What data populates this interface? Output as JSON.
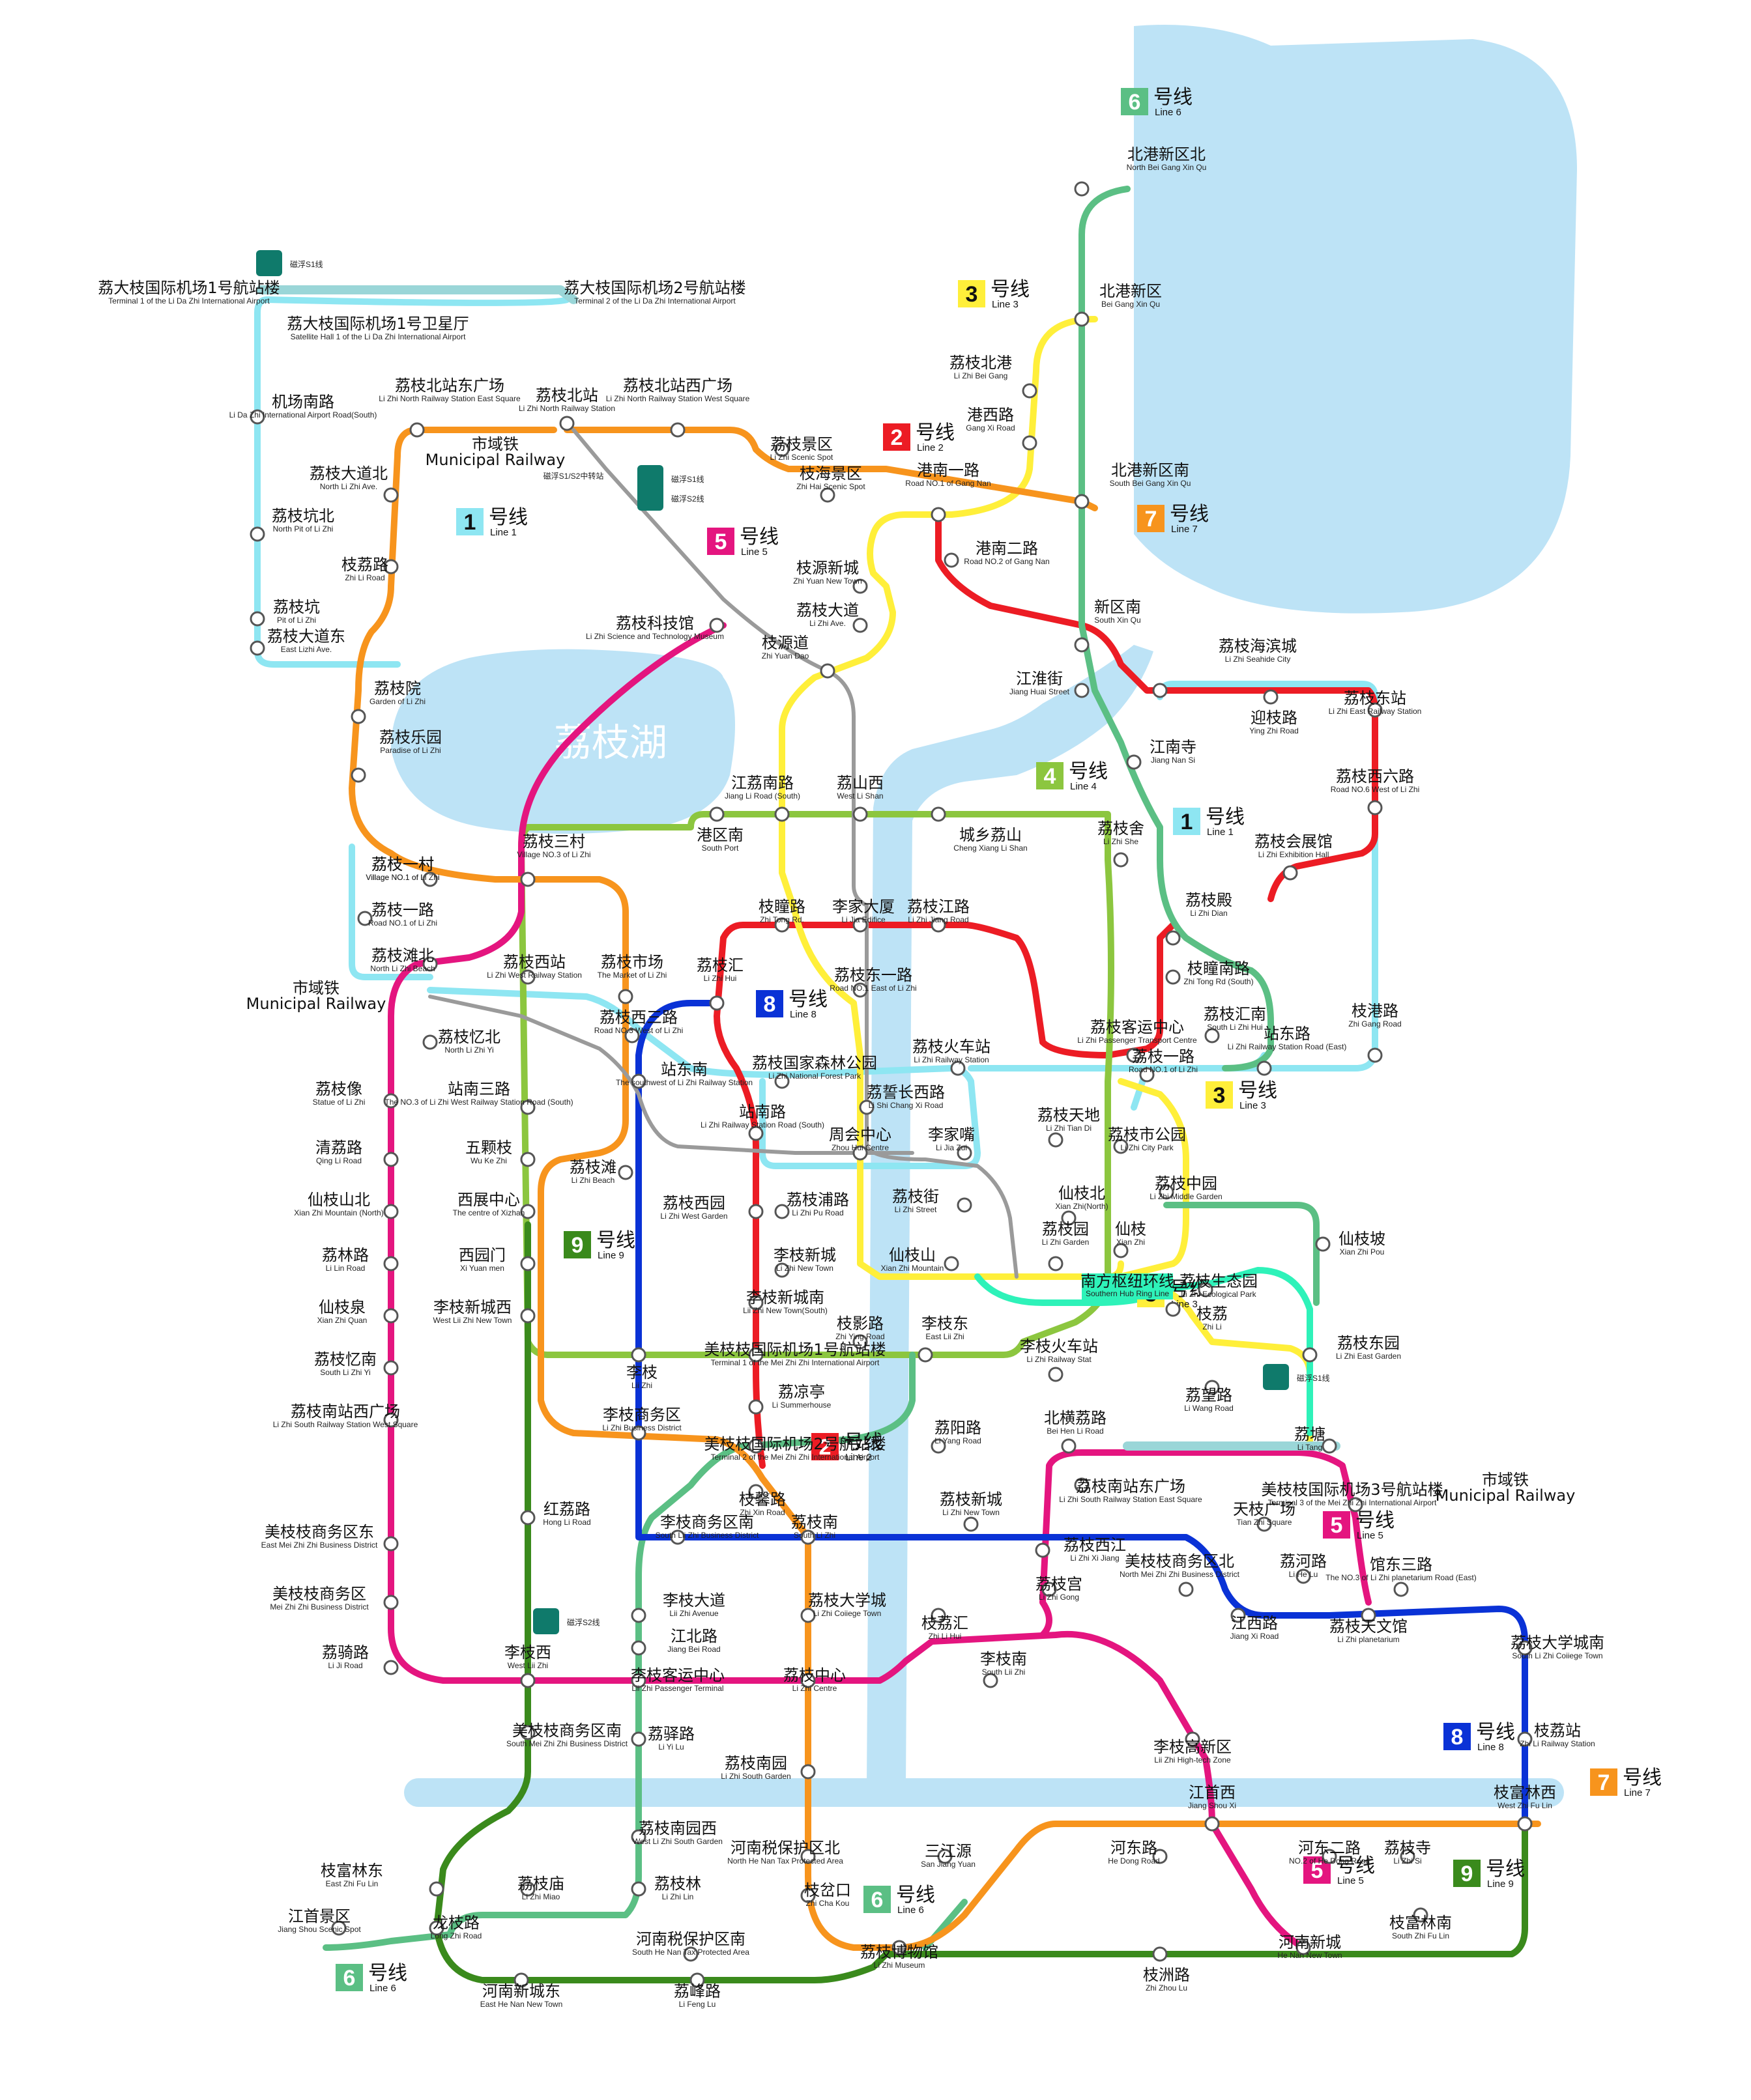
{
  "colors": {
    "water": "#bde3f6",
    "line1": "#8ee6f2",
    "line2": "#ec1c24",
    "line3": "#ffef3a",
    "line4": "#8cc63f",
    "line5": "#e4157f",
    "line6": "#5bbf84",
    "line7": "#f7941d",
    "line8": "#0a32d6",
    "line9": "#3a8a1c",
    "ring": "#2ef2b9",
    "railway": "#999999"
  },
  "map": {
    "lake_label": "荔枝湖",
    "badges": [
      {
        "num": "1",
        "cn": "号线",
        "en": "Line 1",
        "bg": "#8ee6f2",
        "fg": "#111"
      },
      {
        "num": "1",
        "cn": "号线",
        "en": "Line 1",
        "bg": "#8ee6f2",
        "fg": "#111"
      },
      {
        "num": "2",
        "cn": "号线",
        "en": "Line 2",
        "bg": "#ec1c24",
        "fg": "#fff"
      },
      {
        "num": "2",
        "cn": "号线",
        "en": "Line 2",
        "bg": "#ec1c24",
        "fg": "#fff"
      },
      {
        "num": "3",
        "cn": "号线",
        "en": "Line 3",
        "bg": "#ffef3a",
        "fg": "#111"
      },
      {
        "num": "3",
        "cn": "号线",
        "en": "Line 3",
        "bg": "#ffef3a",
        "fg": "#111"
      },
      {
        "num": "3",
        "cn": "号线",
        "en": "Line 3",
        "bg": "#ffef3a",
        "fg": "#111"
      },
      {
        "num": "4",
        "cn": "号线",
        "en": "Line 4",
        "bg": "#8cc63f",
        "fg": "#fff"
      },
      {
        "num": "5",
        "cn": "号线",
        "en": "Line 5",
        "bg": "#e4157f",
        "fg": "#fff"
      },
      {
        "num": "5",
        "cn": "号线",
        "en": "Line 5",
        "bg": "#e4157f",
        "fg": "#fff"
      },
      {
        "num": "5",
        "cn": "号线",
        "en": "Line 5",
        "bg": "#e4157f",
        "fg": "#fff"
      },
      {
        "num": "6",
        "cn": "号线",
        "en": "Line 6",
        "bg": "#5bbf84",
        "fg": "#fff"
      },
      {
        "num": "6",
        "cn": "号线",
        "en": "Line 6",
        "bg": "#5bbf84",
        "fg": "#fff"
      },
      {
        "num": "6",
        "cn": "号线",
        "en": "Line 6",
        "bg": "#5bbf84",
        "fg": "#fff"
      },
      {
        "num": "7",
        "cn": "号线",
        "en": "Line 7",
        "bg": "#f7941d",
        "fg": "#fff"
      },
      {
        "num": "7",
        "cn": "号线",
        "en": "Line 7",
        "bg": "#f7941d",
        "fg": "#fff"
      },
      {
        "num": "8",
        "cn": "号线",
        "en": "Line 8",
        "bg": "#0a32d6",
        "fg": "#fff"
      },
      {
        "num": "8",
        "cn": "号线",
        "en": "Line 8",
        "bg": "#0a32d6",
        "fg": "#fff"
      },
      {
        "num": "9",
        "cn": "号线",
        "en": "Line 9",
        "bg": "#3a8a1c",
        "fg": "#fff"
      },
      {
        "num": "9",
        "cn": "号线",
        "en": "Line 9",
        "bg": "#3a8a1c",
        "fg": "#fff"
      }
    ],
    "maglev_labels": [
      "磁浮S1线",
      "磁浮S1线",
      "磁浮S2线",
      "磁浮S2线",
      "磁浮S1线"
    ],
    "maglev_transfer_label": "磁浮S1/S2中转站",
    "railway_labels": [
      {
        "cn": "市域铁",
        "en": "Municipal Railway"
      },
      {
        "cn": "市域铁",
        "en": "Municipal Railway"
      },
      {
        "cn": "市域铁",
        "en": "Municipal Railway"
      }
    ],
    "ring_label": {
      "cn": "南方枢纽环线",
      "en": "Southern Hub Ring Line"
    },
    "stations": [
      {
        "cn": "北港新区北",
        "en": "North Bei Gang Xin Qu"
      },
      {
        "cn": "北港新区",
        "en": "Bei Gang Xin Qu"
      },
      {
        "cn": "荔枝北港",
        "en": "Li Zhi Bei Gang"
      },
      {
        "cn": "港西路",
        "en": "Gang Xi Road"
      },
      {
        "cn": "港南一路",
        "en": "Road NO.1 of Gang Nan"
      },
      {
        "cn": "北港新区南",
        "en": "South Bei Gang Xin Qu"
      },
      {
        "cn": "港南二路",
        "en": "Road NO.2 of Gang Nan"
      },
      {
        "cn": "新区南",
        "en": "South Xin Qu"
      },
      {
        "cn": "荔大枝国际机场1号航站楼",
        "en": "Terminal 1 of the Li Da Zhi International Airport"
      },
      {
        "cn": "荔大枝国际机场2号航站楼",
        "en": "Terminal 2 of the Li Da Zhi International Airport"
      },
      {
        "cn": "荔大枝国际机场1号卫星厅",
        "en": "Satellite Hall 1 of the Li Da Zhi International Airport"
      },
      {
        "cn": "荔枝北站东广场",
        "en": "Li Zhi North Railway Station East Square"
      },
      {
        "cn": "荔枝北站",
        "en": "Li Zhi North Railway Station"
      },
      {
        "cn": "荔枝北站西广场",
        "en": "Li Zhi North Railway Station West Square"
      },
      {
        "cn": "机场南路",
        "en": "Li Da Zhi International Airport Road(South)"
      },
      {
        "cn": "荔枝景区",
        "en": "Li Zhi Scenic Spot"
      },
      {
        "cn": "枝海景区",
        "en": "Zhi Hai Scenic Spot"
      },
      {
        "cn": "荔枝大道北",
        "en": "North Li Zhi Ave."
      },
      {
        "cn": "荔枝坑北",
        "en": "North Pit of Li Zhi"
      },
      {
        "cn": "枝荔路",
        "en": "Zhi Li Road"
      },
      {
        "cn": "荔枝坑",
        "en": "Pit of Li Zhi"
      },
      {
        "cn": "荔枝大道东",
        "en": "East Lizhi Ave."
      },
      {
        "cn": "枝源新城",
        "en": "Zhi Yuan New Town"
      },
      {
        "cn": "荔枝大道",
        "en": "Li Zhi Ave."
      },
      {
        "cn": "荔枝科技馆",
        "en": "Li Zhi Science and Technology Museum"
      },
      {
        "cn": "枝源道",
        "en": "Zhi Yuan Dao"
      },
      {
        "cn": "荔枝海滨城",
        "en": "Li Zhi Seahide City"
      },
      {
        "cn": "江淮街",
        "en": "Jiang Huai Street"
      },
      {
        "cn": "迎枝路",
        "en": "Ying Zhi Road"
      },
      {
        "cn": "荔枝东站",
        "en": "Li Zhi East Railway Station"
      },
      {
        "cn": "荔枝院",
        "en": "Garden of Li Zhi"
      },
      {
        "cn": "荔枝乐园",
        "en": "Paradise of Li Zhi"
      },
      {
        "cn": "荔枝一村",
        "en": "Village NO.1 of Li Zhi"
      },
      {
        "cn": "江南寺",
        "en": "Jiang Nan Si"
      },
      {
        "cn": "江荔南路",
        "en": "Jiang Li Road (South)"
      },
      {
        "cn": "荔山西",
        "en": "West Li Shan"
      },
      {
        "cn": "荔枝西六路",
        "en": "Road NO.6 West of Li Zhi"
      },
      {
        "cn": "港区南",
        "en": "South Port"
      },
      {
        "cn": "城乡荔山",
        "en": "Cheng Xiang Li Shan"
      },
      {
        "cn": "荔枝舍",
        "en": "Li Zhi She"
      },
      {
        "cn": "荔枝三村",
        "en": "Village NO.3 of Li Zhi"
      },
      {
        "cn": "荔枝会展馆",
        "en": "Li Zhi Exhibition Hall"
      },
      {
        "cn": "荔枝一村",
        "en": "Village NO.1 of Li Zhi"
      },
      {
        "cn": "荔枝一路",
        "en": "Road NO.1 of Li Zhi"
      },
      {
        "cn": "枝瞳路",
        "en": "Zhi Tong Rd."
      },
      {
        "cn": "李家大厦",
        "en": "Li Jia Edifice"
      },
      {
        "cn": "荔枝江路",
        "en": "Li Zhi Jiang Road"
      },
      {
        "cn": "荔枝殿",
        "en": "Li Zhi Dian"
      },
      {
        "cn": "荔枝滩北",
        "en": "North Li Zhi Beach"
      },
      {
        "cn": "荔枝西站",
        "en": "Li Zhi West Railway Station"
      },
      {
        "cn": "荔枝市场",
        "en": "The Market of Li Zhi"
      },
      {
        "cn": "荔枝汇",
        "en": "Li Zhi Hui"
      },
      {
        "cn": "荔枝东一路",
        "en": "Road NO.1 East of Li Zhi"
      },
      {
        "cn": "枝瞳南路",
        "en": "Zhi Tong Rd (South)"
      },
      {
        "cn": "荔枝西三路",
        "en": "Road NO.3 West of Li Zhi"
      },
      {
        "cn": "荔枝汇南",
        "en": "South Li Zhi Hui"
      },
      {
        "cn": "站东路",
        "en": "Li Zhi Railway Station Road (East)"
      },
      {
        "cn": "枝港路",
        "en": "Zhi Gang Road"
      },
      {
        "cn": "荔枝忆北",
        "en": "North Li Zhi Yi"
      },
      {
        "cn": "荔枝客运中心",
        "en": "Li Zhi Passenger Transport Centre"
      },
      {
        "cn": "荔枝火车站",
        "en": "Li Zhi Railway Station"
      },
      {
        "cn": "荔枝一路",
        "en": "Road NO.1 of Li Zhi"
      },
      {
        "cn": "站东南",
        "en": "The southwest of Li Zhi Railway Station"
      },
      {
        "cn": "荔枝国家森林公园",
        "en": "Li Zhi National Forest Park"
      },
      {
        "cn": "荔枝像",
        "en": "Statue of Li Zhi"
      },
      {
        "cn": "站南三路",
        "en": "The NO.3 of Li Zhi West Railway Station Road (South)"
      },
      {
        "cn": "荔誓长西路",
        "en": "Li Shi Chang Xi Road"
      },
      {
        "cn": "荔枝天地",
        "en": "Li Zhi Tian Di"
      },
      {
        "cn": "站南路",
        "en": "Li Zhi Railway Station Road (South)"
      },
      {
        "cn": "荔枝市公园",
        "en": "Li Zhi City Park"
      },
      {
        "cn": "清荔路",
        "en": "Qing Li Road"
      },
      {
        "cn": "五颗枝",
        "en": "Wu Ke Zhi"
      },
      {
        "cn": "周会中心",
        "en": "Zhou Hui Centre"
      },
      {
        "cn": "李家嘴",
        "en": "Li Jia Zui"
      },
      {
        "cn": "荔枝滩",
        "en": "Li Zhi Beach"
      },
      {
        "cn": "荔枝中园",
        "en": "Li Zhi Middle Garden"
      },
      {
        "cn": "仙枝山北",
        "en": "Xian Zhi Mountain (North)"
      },
      {
        "cn": "西展中心",
        "en": "The centre of Xizhan"
      },
      {
        "cn": "荔枝西园",
        "en": "Li Zhi West Garden"
      },
      {
        "cn": "荔枝浦路",
        "en": "Li Zhi Pu Road"
      },
      {
        "cn": "荔枝街",
        "en": "Li Zhi Street"
      },
      {
        "cn": "仙枝北",
        "en": "Xian Zhi(North)"
      },
      {
        "cn": "仙枝坡",
        "en": "Xian Zhi Pou"
      },
      {
        "cn": "荔林路",
        "en": "Li Lin Road"
      },
      {
        "cn": "西园门",
        "en": "Xi Yuan men"
      },
      {
        "cn": "李枝新城",
        "en": "Li Zhi New Town"
      },
      {
        "cn": "荔枝园",
        "en": "Li Zhi Garden"
      },
      {
        "cn": "仙枝",
        "en": "Xian Zhi"
      },
      {
        "cn": "仙枝山",
        "en": "Xian Zhi Mountain"
      },
      {
        "cn": "荔枝生态园",
        "en": "Li Zhi Ecological Park"
      },
      {
        "cn": "仙枝泉",
        "en": "Xian Zhi Quan"
      },
      {
        "cn": "李枝新城西",
        "en": "West Lii Zhi New Town"
      },
      {
        "cn": "李枝新城南",
        "en": "Lii Zhi New Town(South)"
      },
      {
        "cn": "枝荔",
        "en": "Zhi Li"
      },
      {
        "cn": "枝影路",
        "en": "Zhi Ying Road"
      },
      {
        "cn": "李枝东",
        "en": "East Lii Zhi"
      },
      {
        "cn": "荔枝东园",
        "en": "Li Zhi East Garden"
      },
      {
        "cn": "荔枝忆南",
        "en": "South Li Zhi Yi"
      },
      {
        "cn": "李枝火车站",
        "en": "Li Zhi Railway Stat"
      },
      {
        "cn": "美枝枝国际机场1号航站楼",
        "en": "Terminal 1 of the Mei Zhi Zhi International Airport"
      },
      {
        "cn": "李枝",
        "en": "Lii Zhi"
      },
      {
        "cn": "荔凉亭",
        "en": "Li Summerhouse"
      },
      {
        "cn": "荔望路",
        "en": "Li Wang Road"
      },
      {
        "cn": "荔枝南站西广场",
        "en": "Li Zhi South Railway Station West Square"
      },
      {
        "cn": "李枝商务区",
        "en": "Li Zhi Business District"
      },
      {
        "cn": "荔阳路",
        "en": "Li Yang Road"
      },
      {
        "cn": "北横荔路",
        "en": "Bei Hen Li Road"
      },
      {
        "cn": "美枝枝国际机场2号航站楼",
        "en": "Terminal 2 of the Mei Zhi Zhi International Airport"
      },
      {
        "cn": "荔塘",
        "en": "Li Tang"
      },
      {
        "cn": "荔枝南站东广场",
        "en": "Li Zhi South Railway Station East Square"
      },
      {
        "cn": "美枝枝国际机场3号航站楼",
        "en": "Terminal 3 of the Mei Zhi Zhi International Airport"
      },
      {
        "cn": "红荔路",
        "en": "Hong Li Road"
      },
      {
        "cn": "枝馨路",
        "en": "Zhi Xin Road"
      },
      {
        "cn": "荔枝新城",
        "en": "Li Zhi New Town"
      },
      {
        "cn": "天枝广场",
        "en": "Tian Zhi Square"
      },
      {
        "cn": "美枝枝商务区东",
        "en": "East Mei Zhi Zhi Business District"
      },
      {
        "cn": "李枝商务区南",
        "en": "South Lii Zhi Business District"
      },
      {
        "cn": "荔枝南",
        "en": "South Li Zhi"
      },
      {
        "cn": "荔枝西江",
        "en": "Li Zhi Xi Jiang"
      },
      {
        "cn": "美枝枝商务区北",
        "en": "North Mei Zhi Zhi Business District"
      },
      {
        "cn": "荔河路",
        "en": "Li He Lu"
      },
      {
        "cn": "馆东三路",
        "en": "The NO.3 of Li Zhi planetarium Road (East)"
      },
      {
        "cn": "荔枝宫",
        "en": "Li Zhi Gong"
      },
      {
        "cn": "美枝枝商务区",
        "en": "Mei Zhi Zhi Business District"
      },
      {
        "cn": "李枝大道",
        "en": "Lii Zhi Avenue"
      },
      {
        "cn": "荔枝大学城",
        "en": "Li Zhi Coiiege Town"
      },
      {
        "cn": "枝荔汇",
        "en": "Zhi Li Hui"
      },
      {
        "cn": "江西路",
        "en": "Jiang Xi Road"
      },
      {
        "cn": "荔枝天文馆",
        "en": "Li Zhi planetarium"
      },
      {
        "cn": "江北路",
        "en": "Jiang Bei Road"
      },
      {
        "cn": "荔枝大学城南",
        "en": "South Li Zhi Coiiege Town"
      },
      {
        "cn": "荔骑路",
        "en": "Li Ji Road"
      },
      {
        "cn": "李枝西",
        "en": "West Lii Zhi"
      },
      {
        "cn": "李枝客运中心",
        "en": "Lii Zhi Passenger Terminal"
      },
      {
        "cn": "荔枝中心",
        "en": "Li Zhi Centre"
      },
      {
        "cn": "李枝南",
        "en": "South Lii Zhi"
      },
      {
        "cn": "美枝枝商务区南",
        "en": "South Mei Zhi Zhi Business District"
      },
      {
        "cn": "荔驿路",
        "en": "Li Yi Lu"
      },
      {
        "cn": "枝荔站",
        "en": "Zhi Li Railway Station"
      },
      {
        "cn": "荔枝南园",
        "en": "Li Zhi South Garden"
      },
      {
        "cn": "李枝高新区",
        "en": "Lii Zhi High-tech Zone"
      },
      {
        "cn": "荔枝南园西",
        "en": "West Li Zhi South Garden"
      },
      {
        "cn": "江首西",
        "en": "Jiang Shou Xi"
      },
      {
        "cn": "枝富林西",
        "en": "West Zhi Fu Lin"
      },
      {
        "cn": "枝富林东",
        "en": "East Zhi Fu Lin"
      },
      {
        "cn": "河南税保护区北",
        "en": "North He Nan Tax Protected Area"
      },
      {
        "cn": "三江源",
        "en": "San Jiang Yuan"
      },
      {
        "cn": "河东路",
        "en": "He Dong Road"
      },
      {
        "cn": "河东二路",
        "en": "NO.2 of He Dong Road"
      },
      {
        "cn": "荔枝寺",
        "en": "Li Zhi Si"
      },
      {
        "cn": "荔枝庙",
        "en": "Li Zhi Miao"
      },
      {
        "cn": "荔枝林",
        "en": "Li Zhi Lin"
      },
      {
        "cn": "枝岔口",
        "en": "Zhi Cha Kou"
      },
      {
        "cn": "江首景区",
        "en": "Jiang Shou Scenic Spot"
      },
      {
        "cn": "龙枝路",
        "en": "Long Zhi Road"
      },
      {
        "cn": "河南税保护区南",
        "en": "South He Nan Tax Protected Area"
      },
      {
        "cn": "荔枝博物馆",
        "en": "Li Zhi Museum"
      },
      {
        "cn": "河南新城",
        "en": "He Nan New Town"
      },
      {
        "cn": "枝富林南",
        "en": "South Zhi Fu Lin"
      },
      {
        "cn": "枝洲路",
        "en": "Zhi Zhou Lu"
      },
      {
        "cn": "河南新城东",
        "en": "East He Nan New Town"
      },
      {
        "cn": "荔峰路",
        "en": "Li Feng Lu"
      },
      {
        "cn": "河南新城西",
        "en": "West He Nan New Town"
      }
    ]
  }
}
